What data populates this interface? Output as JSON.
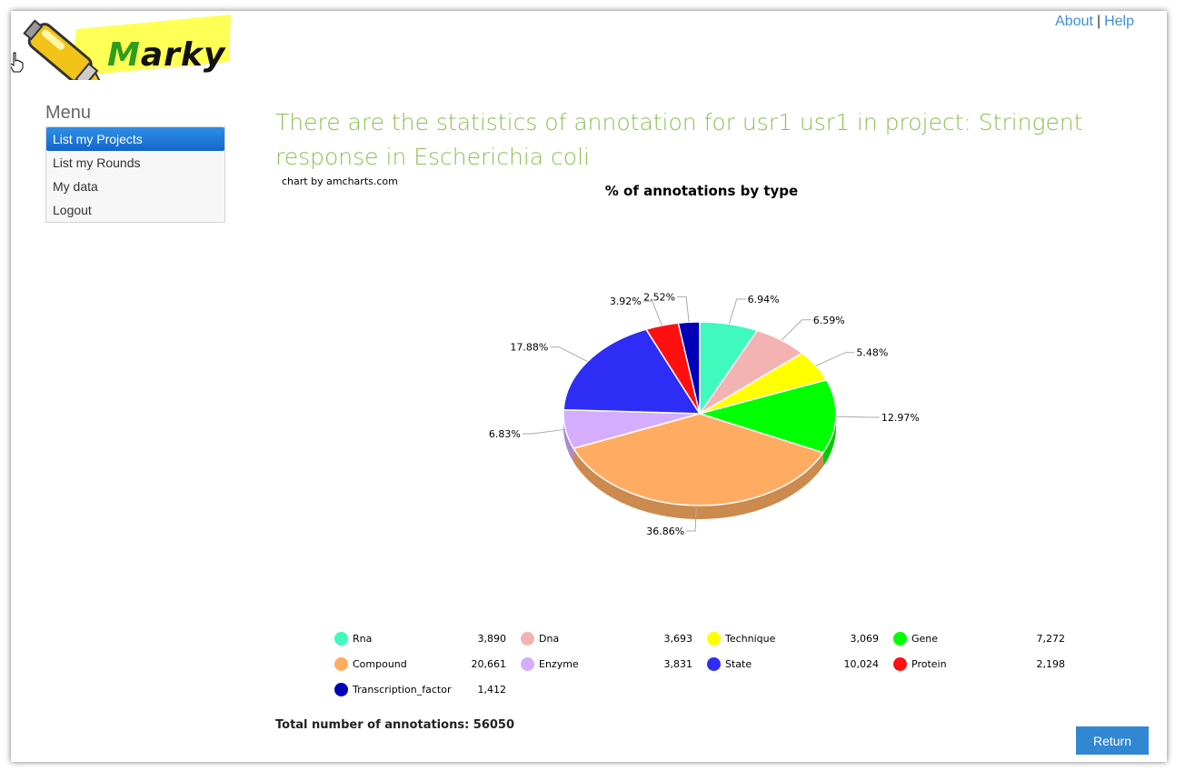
{
  "header": {
    "logo_text": "Marky",
    "about_label": "About",
    "separator": "|",
    "help_label": "Help"
  },
  "menu": {
    "title": "Menu",
    "items": [
      {
        "label": "List my Projects"
      },
      {
        "label": "List my Rounds"
      },
      {
        "label": "My data"
      },
      {
        "label": "Logout"
      }
    ]
  },
  "main": {
    "heading": "There are the statistics of annotation for usr1 usr1 in project: Stringent response in Escherichia coli",
    "credit": "chart by amcharts.com",
    "total_label": "Total number of annotations: 56050",
    "return_label": "Return"
  },
  "chart_data": {
    "type": "pie",
    "title": "% of annotations by type",
    "slices": [
      {
        "name": "Rna",
        "value": 3890,
        "percent": "6.94%",
        "color": "#3ffabc"
      },
      {
        "name": "Dna",
        "value": 3693,
        "percent": "6.59%",
        "color": "#f4b3b3"
      },
      {
        "name": "Technique",
        "value": 3069,
        "percent": "5.48%",
        "color": "#ffff00"
      },
      {
        "name": "Gene",
        "value": 7272,
        "percent": "12.97%",
        "color": "#00ff00"
      },
      {
        "name": "Compound",
        "value": 20661,
        "percent": "36.86%",
        "color": "#ffac62"
      },
      {
        "name": "Enzyme",
        "value": 3831,
        "percent": "6.83%",
        "color": "#d4adff"
      },
      {
        "name": "State",
        "value": 10024,
        "percent": "17.88%",
        "color": "#2d2df5"
      },
      {
        "name": "Protein",
        "value": 2198,
        "percent": "3.92%",
        "color": "#ff1010"
      },
      {
        "name": "Transcription_factor",
        "value": 1412,
        "percent": "2.52%",
        "color": "#0000b8"
      }
    ],
    "legend": [
      {
        "name": "Rna",
        "display": "3,890"
      },
      {
        "name": "Dna",
        "display": "3,693"
      },
      {
        "name": "Technique",
        "display": "3,069"
      },
      {
        "name": "Gene",
        "display": "7,272"
      },
      {
        "name": "Compound",
        "display": "20,661"
      },
      {
        "name": "Enzyme",
        "display": "3,831"
      },
      {
        "name": "State",
        "display": "10,024"
      },
      {
        "name": "Protein",
        "display": "2,198"
      },
      {
        "name": "Transcription_factor",
        "display": "1,412"
      }
    ]
  }
}
